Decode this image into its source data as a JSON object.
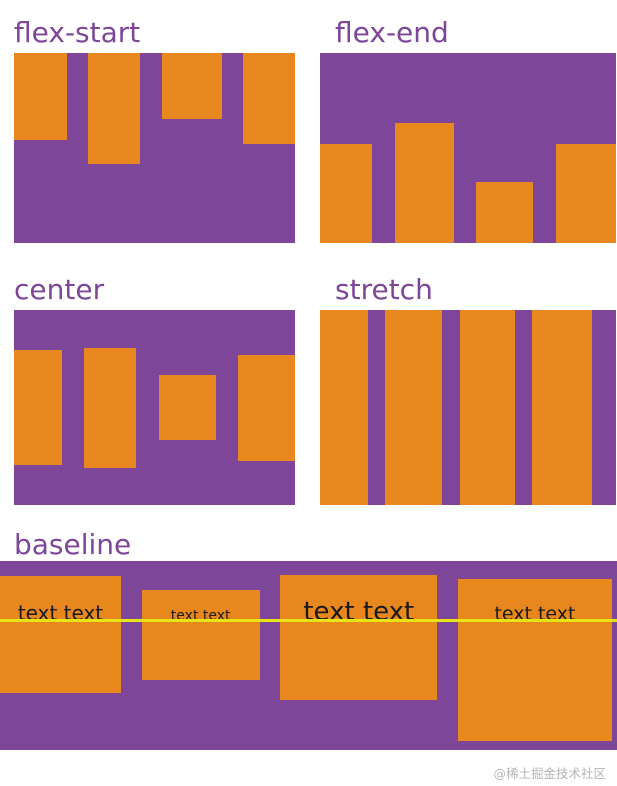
{
  "page": {
    "watermark": "@稀土掘金技术社区"
  },
  "colors": {
    "container_purple": "#7d4698",
    "item_orange": "#e8871e",
    "label_purple": "#7d4698",
    "baseline_line_yellow": "#e6e414",
    "baseline_text": "#1a1a1a",
    "watermark_gray": "#b5b5b5"
  },
  "demos": {
    "flex_start": {
      "label": "flex-start"
    },
    "flex_end": {
      "label": "flex-end"
    },
    "center": {
      "label": "center"
    },
    "stretch": {
      "label": "stretch"
    },
    "baseline": {
      "label": "baseline",
      "items": [
        {
          "text": "text text"
        },
        {
          "text": "text text"
        },
        {
          "text": "text text"
        },
        {
          "text": "text text"
        }
      ]
    }
  }
}
